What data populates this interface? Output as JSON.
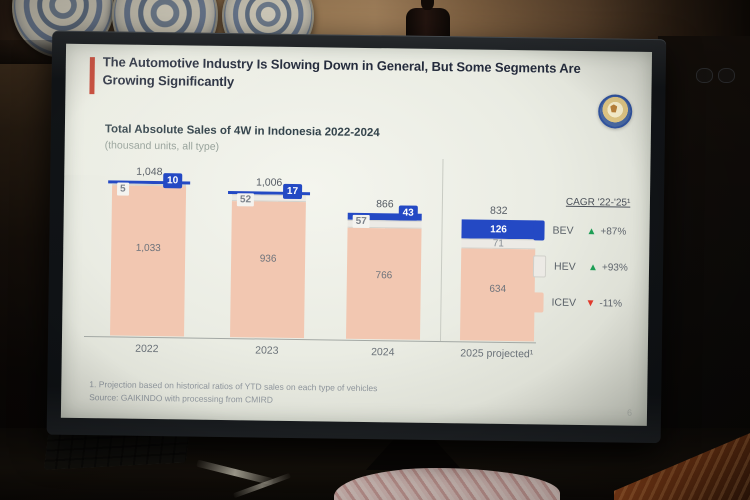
{
  "slide": {
    "title": "The Automotive Industry Is Slowing Down in General, But Some Segments Are Growing Significantly",
    "footnote_1": "1. Projection based on historical ratios of YTD sales on each type of vehicles",
    "footnote_2": "Source: GAIKINDO with processing from CMIRD",
    "page_number": "6",
    "accent_color": "#c23b2a",
    "logo": "circular-blue-emblem"
  },
  "chart_data": {
    "type": "bar",
    "stacked": true,
    "title": "Total Absolute Sales of 4W in Indonesia 2022-2024",
    "subtitle": "(thousand units, all type)",
    "categories": [
      "2022",
      "2023",
      "2024",
      "2025 projected¹"
    ],
    "totals": [
      1048,
      1006,
      866,
      832
    ],
    "total_labels": [
      "1,048",
      "1,006",
      "866",
      "832"
    ],
    "series": [
      {
        "name": "BEV",
        "color": "#2449c4",
        "values": [
          10,
          17,
          43,
          126
        ],
        "value_labels": [
          "10",
          "17",
          "43",
          "126"
        ],
        "cagr": "+87%",
        "trend": "up"
      },
      {
        "name": "HEV",
        "color": "#eceae5",
        "values": [
          5,
          52,
          57,
          71
        ],
        "value_labels": [
          "5",
          "52",
          "57",
          "71"
        ],
        "cagr": "+93%",
        "trend": "up"
      },
      {
        "name": "ICEV",
        "color": "#f2c7b1",
        "values": [
          1033,
          936,
          766,
          634
        ],
        "value_labels": [
          "1,033",
          "936",
          "766",
          "634"
        ],
        "cagr": "-11%",
        "trend": "down"
      }
    ],
    "legend_header": "CAGR '22-'25¹",
    "legend_position": "right",
    "ylabel": "",
    "xlabel": "",
    "ylim": [
      0,
      1100
    ],
    "grid": false,
    "trend_up_color": "#1d9e55",
    "trend_down_color": "#e03a2c",
    "note": "projection column separated by vertical divider"
  }
}
